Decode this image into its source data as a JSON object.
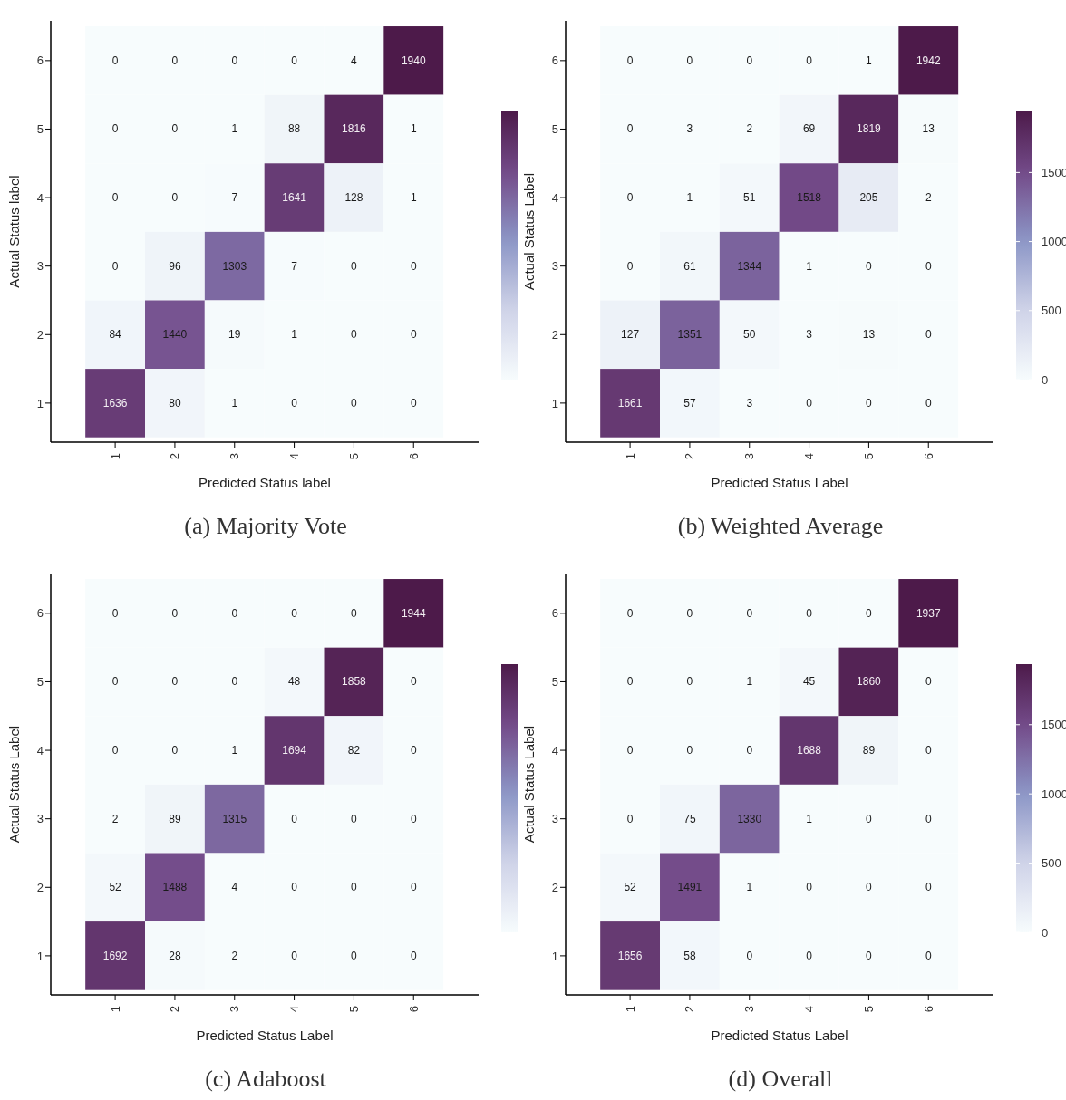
{
  "chart_data": [
    {
      "type": "heatmap",
      "title": "(a) Majority Vote",
      "xlabel": "Predicted Status label",
      "ylabel": "Actual Status label",
      "categories": [
        "1",
        "2",
        "3",
        "4",
        "5",
        "6"
      ],
      "y_categories": [
        "6",
        "5",
        "4",
        "3",
        "2",
        "1"
      ],
      "data_labels": true,
      "cells": [
        [
          0,
          0,
          0,
          0,
          4,
          1940
        ],
        [
          0,
          0,
          1,
          88,
          1816,
          1
        ],
        [
          0,
          0,
          7,
          1641,
          128,
          1
        ],
        [
          0,
          96,
          1303,
          7,
          0,
          0
        ],
        [
          84,
          1440,
          19,
          1,
          0,
          0
        ],
        [
          1636,
          80,
          1,
          0,
          0,
          0
        ]
      ]
    },
    {
      "type": "heatmap",
      "title": "(b) Weighted Average",
      "xlabel": "Predicted Status Label",
      "ylabel": "Actual Status Label",
      "categories": [
        "1",
        "2",
        "3",
        "4",
        "5",
        "6"
      ],
      "y_categories": [
        "6",
        "5",
        "4",
        "3",
        "2",
        "1"
      ],
      "data_labels": true,
      "cells": [
        [
          0,
          0,
          0,
          0,
          1,
          1942
        ],
        [
          0,
          3,
          2,
          69,
          1819,
          13
        ],
        [
          0,
          1,
          51,
          1518,
          205,
          2
        ],
        [
          0,
          61,
          1344,
          1,
          0,
          0
        ],
        [
          127,
          1351,
          50,
          3,
          13,
          0
        ],
        [
          1661,
          57,
          3,
          0,
          0,
          0
        ]
      ],
      "clim": [
        0,
        1942
      ],
      "cticks": [
        0,
        500,
        1000,
        1500
      ]
    },
    {
      "type": "heatmap",
      "title": "(c) Adaboost",
      "xlabel": "Predicted Status Label",
      "ylabel": "Actual Status Label",
      "categories": [
        "1",
        "2",
        "3",
        "4",
        "5",
        "6"
      ],
      "y_categories": [
        "6",
        "5",
        "4",
        "3",
        "2",
        "1"
      ],
      "data_labels": true,
      "cells": [
        [
          0,
          0,
          0,
          0,
          0,
          1944
        ],
        [
          0,
          0,
          0,
          48,
          1858,
          0
        ],
        [
          0,
          0,
          1,
          1694,
          82,
          0
        ],
        [
          2,
          89,
          1315,
          0,
          0,
          0
        ],
        [
          52,
          1488,
          4,
          0,
          0,
          0
        ],
        [
          1692,
          28,
          2,
          0,
          0,
          0
        ]
      ]
    },
    {
      "type": "heatmap",
      "title": "(d) Overall",
      "xlabel": "Predicted Status Label",
      "ylabel": "Actual Status Label",
      "categories": [
        "1",
        "2",
        "3",
        "4",
        "5",
        "6"
      ],
      "y_categories": [
        "6",
        "5",
        "4",
        "3",
        "2",
        "1"
      ],
      "data_labels": true,
      "cells": [
        [
          0,
          0,
          0,
          0,
          0,
          1937
        ],
        [
          0,
          0,
          1,
          45,
          1860,
          0
        ],
        [
          0,
          0,
          0,
          1688,
          89,
          0
        ],
        [
          0,
          75,
          1330,
          1,
          0,
          0
        ],
        [
          52,
          1491,
          1,
          0,
          0,
          0
        ],
        [
          1656,
          58,
          0,
          0,
          0,
          0
        ]
      ],
      "clim": [
        0,
        1937
      ],
      "cticks": [
        0,
        500,
        1000,
        1500
      ]
    }
  ]
}
